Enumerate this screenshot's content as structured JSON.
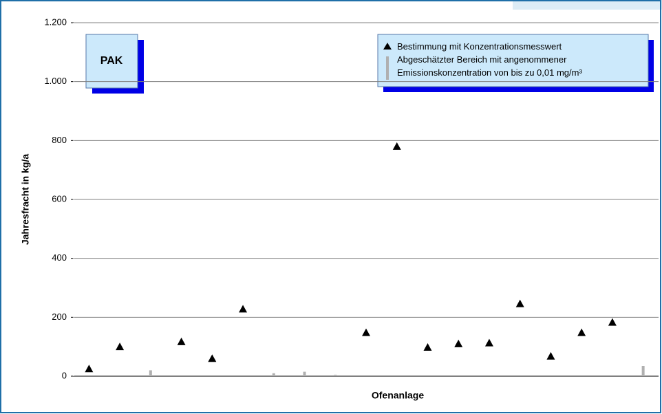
{
  "chart_data": {
    "type": "scatter",
    "title": "PAK",
    "xlabel": "Ofenanlage",
    "ylabel": "Jahresfracht in kg/a",
    "categories": [
      null,
      null,
      null,
      null,
      null,
      null,
      null,
      null,
      null,
      null,
      null,
      null,
      null,
      null,
      null,
      null,
      null,
      null,
      null
    ],
    "series": [
      {
        "name": "Bestimmung mit Konzentrationsmesswert",
        "color": "#000000",
        "marker": "triangle",
        "values": [
          25,
          100,
          null,
          117,
          60,
          228,
          null,
          null,
          null,
          148,
          780,
          98,
          110,
          113,
          246,
          68,
          148,
          183,
          null
        ]
      },
      {
        "name": "Abgeschätzter Bereich mit angenommener Emissionskonzentration von bis zu 0,01 mg/m³",
        "color": "#b0b0b0",
        "marker": "range",
        "values": [
          null,
          null,
          20,
          null,
          null,
          null,
          10,
          15,
          5,
          null,
          null,
          null,
          null,
          null,
          null,
          null,
          null,
          null,
          35
        ]
      }
    ],
    "ylim": [
      0,
      1200
    ],
    "yticks": [
      0,
      200,
      400,
      600,
      800,
      {
        "value": 1000,
        "label": "1.000"
      },
      {
        "value": 1200,
        "label": "1.200"
      }
    ],
    "grid": true,
    "legend": "upper right"
  }
}
